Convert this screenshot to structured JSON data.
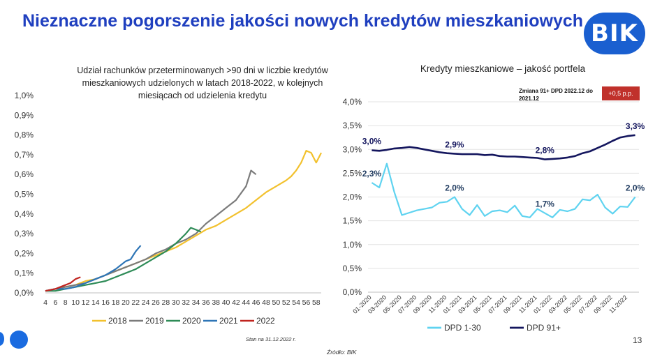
{
  "title": "Nieznaczne pogorszenie jakości nowych kredytów mieszkaniowych",
  "logo_text": "BIK",
  "footer": {
    "status": "Stan na 31.12.2022 r.",
    "source": "Źródło: BIK",
    "page": "13"
  },
  "colors": {
    "title": "#1f3fbf",
    "logo_bg": "#1a5fd0",
    "badge_bg": "#c0312b"
  },
  "chart_data": [
    {
      "type": "line",
      "title": "Udział rachunków przeterminowanych >90 dni w liczbie kredytów mieszkaniowych udzielonych w latach 2018-2022, w kolejnych miesiącach od udzielenia kredytu",
      "xlabel": "",
      "ylabel": "",
      "x_ticks": [
        "4",
        "6",
        "8",
        "10",
        "12",
        "14",
        "16",
        "18",
        "20",
        "22",
        "24",
        "26",
        "28",
        "30",
        "32",
        "34",
        "36",
        "38",
        "40",
        "42",
        "44",
        "46",
        "48",
        "50",
        "52",
        "54",
        "56",
        "58"
      ],
      "y_ticks": [
        "0,0%",
        "0,1%",
        "0,2%",
        "0,3%",
        "0,4%",
        "0,5%",
        "0,6%",
        "0,7%",
        "0,8%",
        "0,9%",
        "1,0%"
      ],
      "xlim": [
        4,
        59
      ],
      "ylim": [
        0,
        1.0
      ],
      "grid": false,
      "legend": "bottom",
      "series": [
        {
          "name": "2018",
          "color": "#f2c12e",
          "x": [
            4,
            6,
            8,
            10,
            12,
            14,
            16,
            18,
            20,
            22,
            24,
            26,
            28,
            30,
            32,
            34,
            36,
            38,
            40,
            42,
            44,
            46,
            48,
            50,
            52,
            53,
            54,
            55,
            56,
            57,
            58,
            59
          ],
          "y": [
            0.01,
            0.02,
            0.03,
            0.04,
            0.06,
            0.07,
            0.09,
            0.11,
            0.13,
            0.15,
            0.17,
            0.19,
            0.21,
            0.23,
            0.26,
            0.29,
            0.32,
            0.34,
            0.37,
            0.4,
            0.43,
            0.47,
            0.51,
            0.54,
            0.57,
            0.59,
            0.62,
            0.66,
            0.72,
            0.71,
            0.66,
            0.71
          ]
        },
        {
          "name": "2019",
          "color": "#7b7b7b",
          "x": [
            4,
            6,
            8,
            10,
            12,
            14,
            16,
            18,
            20,
            22,
            24,
            26,
            28,
            30,
            32,
            34,
            36,
            38,
            40,
            42,
            44,
            45,
            46
          ],
          "y": [
            0.01,
            0.02,
            0.03,
            0.04,
            0.05,
            0.07,
            0.09,
            0.11,
            0.13,
            0.15,
            0.17,
            0.2,
            0.22,
            0.25,
            0.27,
            0.3,
            0.35,
            0.39,
            0.43,
            0.47,
            0.54,
            0.62,
            0.6
          ]
        },
        {
          "name": "2020",
          "color": "#2e8b57",
          "x": [
            4,
            6,
            8,
            10,
            12,
            14,
            16,
            18,
            20,
            22,
            24,
            26,
            28,
            30,
            32,
            33,
            34,
            35
          ],
          "y": [
            0.01,
            0.01,
            0.02,
            0.03,
            0.04,
            0.05,
            0.06,
            0.08,
            0.1,
            0.12,
            0.15,
            0.18,
            0.21,
            0.25,
            0.3,
            0.33,
            0.32,
            0.31
          ]
        },
        {
          "name": "2021",
          "color": "#2e75b6",
          "x": [
            4,
            6,
            8,
            10,
            12,
            14,
            16,
            18,
            19,
            20,
            21,
            22,
            23
          ],
          "y": [
            0.01,
            0.02,
            0.02,
            0.03,
            0.05,
            0.07,
            0.09,
            0.12,
            0.14,
            0.16,
            0.17,
            0.21,
            0.24
          ]
        },
        {
          "name": "2022",
          "color": "#c0241f",
          "x": [
            4,
            6,
            8,
            9,
            10,
            11
          ],
          "y": [
            0.01,
            0.02,
            0.04,
            0.05,
            0.07,
            0.08
          ]
        }
      ]
    },
    {
      "type": "line",
      "title": "Kredyty mieszkaniowe – jakość portfela",
      "annotation": "Zmiana 91+ DPD 2022.12 do 2021.12",
      "badge": "+0,5 p.p.",
      "xlabel": "",
      "ylabel": "",
      "y_ticks": [
        "0,0%",
        "0,5%",
        "1,0%",
        "1,5%",
        "2,0%",
        "2,5%",
        "3,0%",
        "3,5%",
        "4,0%"
      ],
      "ylim": [
        0,
        4.0
      ],
      "x_ticks": [
        "01-2020",
        "03-2020",
        "05-2020",
        "07-2020",
        "09-2020",
        "11-2020",
        "01-2021",
        "03-2021",
        "05-2021",
        "07-2021",
        "09-2021",
        "11-2021",
        "01-2022",
        "03-2022",
        "05-2022",
        "07-2022",
        "09-2022",
        "11-2022"
      ],
      "grid": true,
      "legend": "bottom",
      "x": [
        "01-2020",
        "02-2020",
        "03-2020",
        "04-2020",
        "05-2020",
        "06-2020",
        "07-2020",
        "08-2020",
        "09-2020",
        "10-2020",
        "11-2020",
        "12-2020",
        "01-2021",
        "02-2021",
        "03-2021",
        "04-2021",
        "05-2021",
        "06-2021",
        "07-2021",
        "08-2021",
        "09-2021",
        "10-2021",
        "11-2021",
        "12-2021",
        "01-2022",
        "02-2022",
        "03-2022",
        "04-2022",
        "05-2022",
        "06-2022",
        "07-2022",
        "08-2022",
        "09-2022",
        "10-2022",
        "11-2022",
        "12-2022"
      ],
      "series": [
        {
          "name": "DPD 1-30",
          "color": "#5fd3f0",
          "values": [
            2.3,
            2.2,
            2.7,
            2.1,
            1.62,
            1.67,
            1.72,
            1.75,
            1.78,
            1.88,
            1.9,
            2.0,
            1.75,
            1.62,
            1.83,
            1.6,
            1.7,
            1.72,
            1.68,
            1.82,
            1.6,
            1.57,
            1.75,
            1.66,
            1.57,
            1.73,
            1.7,
            1.75,
            1.95,
            1.93,
            2.05,
            1.78,
            1.65,
            1.8,
            1.79,
            2.0
          ]
        },
        {
          "name": "DPD 91+",
          "color": "#14165e",
          "values": [
            2.98,
            2.97,
            2.99,
            3.02,
            3.03,
            3.05,
            3.03,
            3.0,
            2.97,
            2.94,
            2.92,
            2.91,
            2.9,
            2.9,
            2.9,
            2.88,
            2.89,
            2.86,
            2.85,
            2.85,
            2.84,
            2.83,
            2.82,
            2.79,
            2.8,
            2.81,
            2.83,
            2.86,
            2.92,
            2.96,
            3.03,
            3.1,
            3.18,
            3.25,
            3.28,
            3.3
          ]
        }
      ],
      "data_labels": [
        {
          "series": "DPD 91+",
          "x": "01-2020",
          "text": "3,0%"
        },
        {
          "series": "DPD 91+",
          "x": "12-2020",
          "text": "2,9%"
        },
        {
          "series": "DPD 91+",
          "x": "12-2021",
          "text": "2,8%"
        },
        {
          "series": "DPD 91+",
          "x": "12-2022",
          "text": "3,3%"
        },
        {
          "series": "DPD 1-30",
          "x": "01-2020",
          "text": "2,3%"
        },
        {
          "series": "DPD 1-30",
          "x": "12-2020",
          "text": "2,0%"
        },
        {
          "series": "DPD 1-30",
          "x": "12-2021",
          "text": "1,7%"
        },
        {
          "series": "DPD 1-30",
          "x": "12-2022",
          "text": "2,0%"
        }
      ]
    }
  ]
}
